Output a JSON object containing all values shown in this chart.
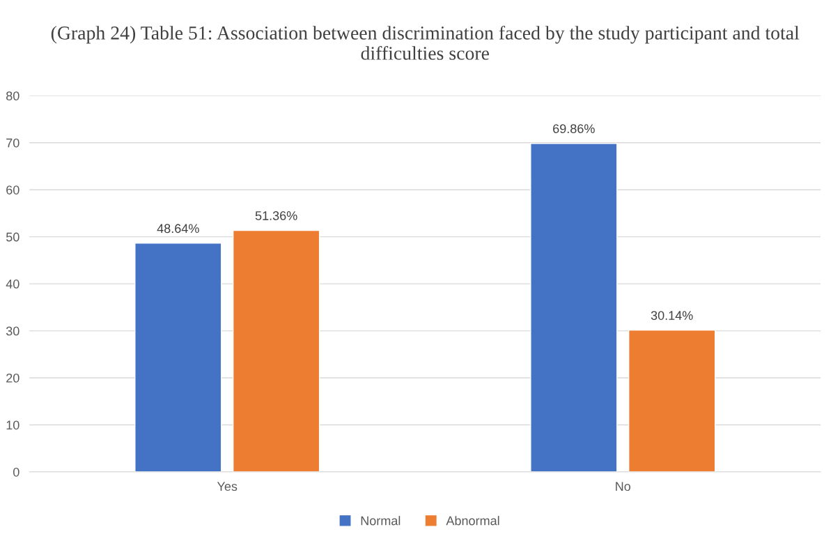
{
  "chart_data": {
    "type": "bar",
    "title": "(Graph 24) Table 51: Association between discrimination faced by the study participant and total difficulties score",
    "categories": [
      "Yes",
      "No"
    ],
    "series": [
      {
        "name": "Normal",
        "color": "#4472c4",
        "values": [
          48.64,
          69.86
        ],
        "value_labels": [
          "48.64%",
          "69.86%"
        ]
      },
      {
        "name": "Abnormal",
        "color": "#ed7d31",
        "values": [
          51.36,
          30.14
        ],
        "value_labels": [
          "51.36%",
          "30.14%"
        ]
      }
    ],
    "ylim": [
      0,
      80
    ],
    "yticks": [
      0,
      10,
      20,
      30,
      40,
      50,
      60,
      70,
      80
    ],
    "grid": "y",
    "legend": "bottom"
  }
}
